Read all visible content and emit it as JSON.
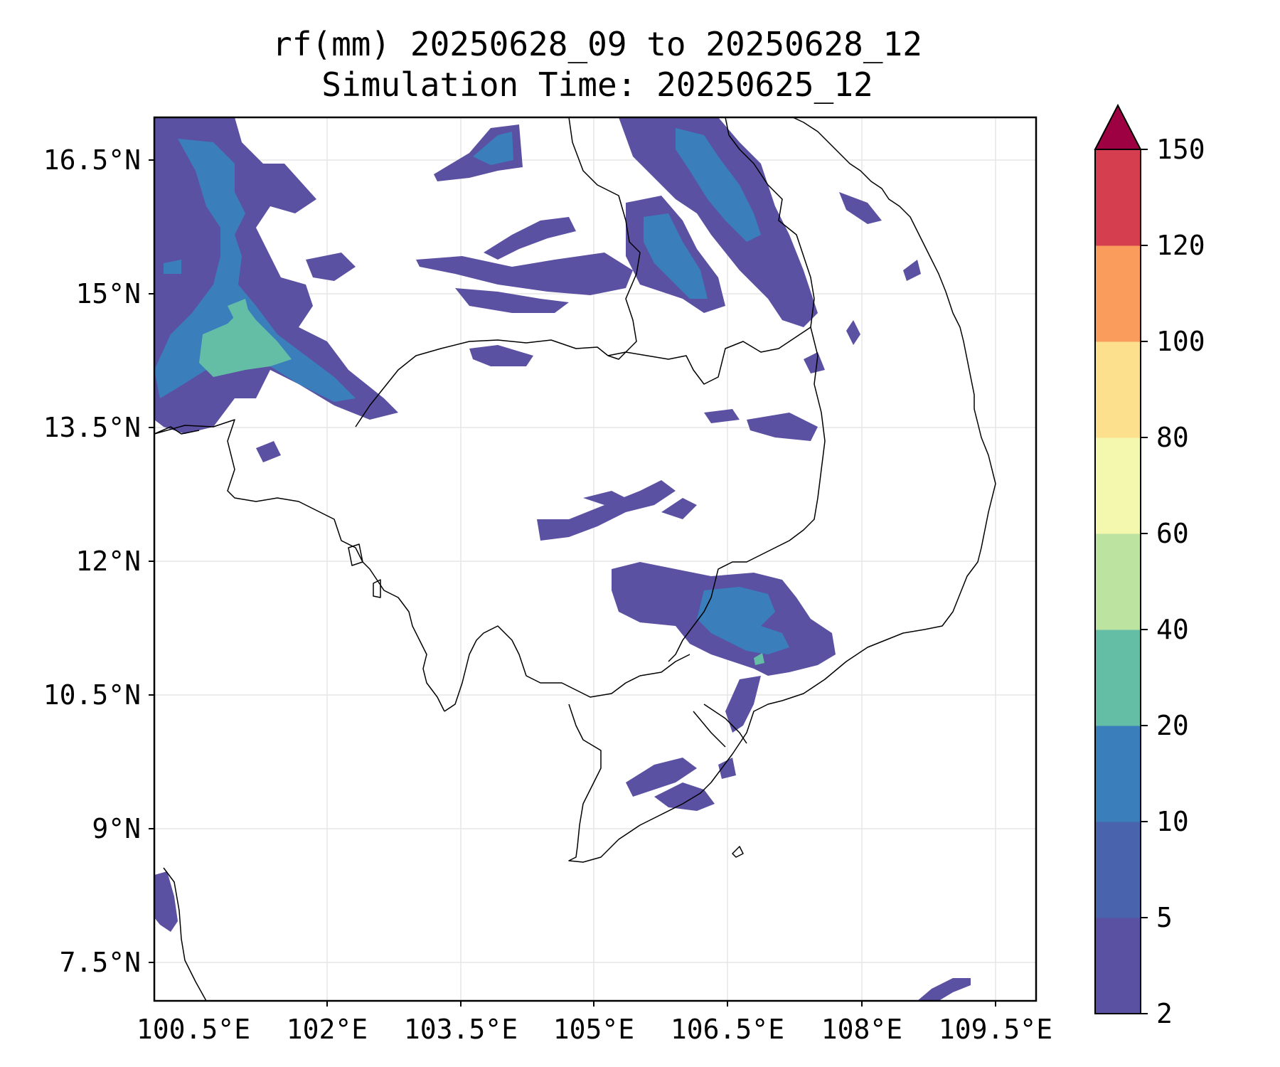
{
  "title": {
    "line1": "rf(mm) 20250628_09 to 20250628_12",
    "line2": "Simulation Time: 20250625_12"
  },
  "map": {
    "lon_ticks": [
      "100.5°E",
      "102°E",
      "103.5°E",
      "105°E",
      "106.5°E",
      "108°E",
      "109.5°E"
    ],
    "lat_ticks": [
      "16.5°N",
      "15°N",
      "13.5°N",
      "12°N",
      "10.5°N",
      "9°N",
      "7.5°N"
    ],
    "grid": true,
    "coastline_color": "#000000",
    "lon_range": [
      100.5,
      110.4
    ],
    "lat_range": [
      7.0,
      16.9
    ]
  },
  "colorbar": {
    "levels": [
      "2",
      "5",
      "10",
      "20",
      "40",
      "60",
      "80",
      "100",
      "120",
      "150"
    ],
    "colors": [
      "#5b51a3",
      "#4a63ad",
      "#3a7fbc",
      "#64bea6",
      "#bde3a1",
      "#f3f8ae",
      "#fde08e",
      "#f99c5c",
      "#d53e4f"
    ],
    "extend_color": "#9e0142",
    "extend": "max"
  }
}
